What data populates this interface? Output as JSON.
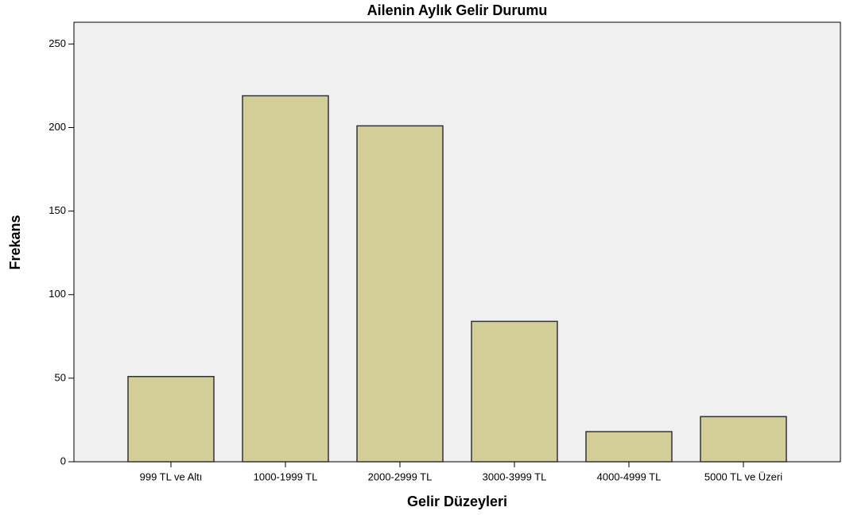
{
  "chart_data": {
    "type": "bar",
    "title": "Ailenin Aylık Gelir Durumu",
    "x_label": "Gelir Düzeyleri",
    "y_label": "Frekans",
    "categories": [
      "999 TL ve Altı",
      "1000-1999 TL",
      "2000-2999 TL",
      "3000-3999 TL",
      "4000-4999 TL",
      "5000 TL ve Üzeri"
    ],
    "values": [
      51,
      219,
      201,
      84,
      18,
      27
    ],
    "color": "#d3ce97",
    "ylim": [
      0,
      263
    ],
    "yticks": [
      0,
      50,
      100,
      150,
      200,
      250
    ],
    "grid": false
  }
}
